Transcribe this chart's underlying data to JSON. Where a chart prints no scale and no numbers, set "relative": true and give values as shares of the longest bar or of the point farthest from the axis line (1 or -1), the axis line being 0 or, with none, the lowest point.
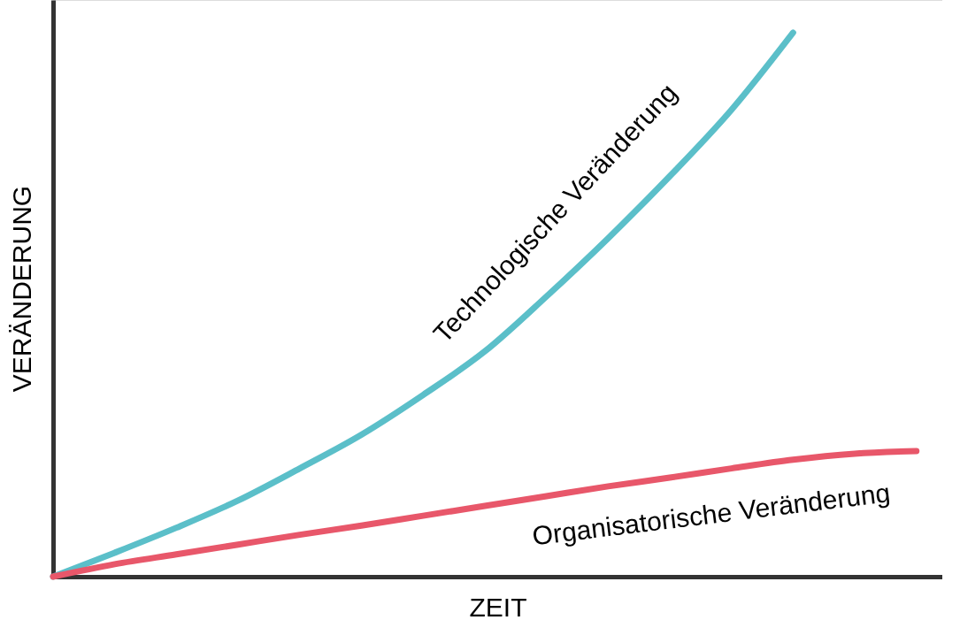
{
  "chart_data": {
    "type": "line",
    "relative": true,
    "xlabel": "ZEIT",
    "ylabel": "VERÄNDERUNG",
    "legend": false,
    "grid": false,
    "tick_labels": false,
    "marker": "none",
    "line_style": "solid",
    "categories": [
      null,
      null,
      null,
      null,
      null,
      null,
      null,
      null,
      null,
      null,
      null,
      null,
      null,
      null,
      null
    ],
    "series": [
      {
        "name": "Technologische Veränderung",
        "color": "#5bbfc9",
        "values": [
          0,
          0.044,
          0.09,
          0.14,
          0.199,
          0.261,
          0.334,
          0.414,
          0.515,
          0.622,
          0.736,
          0.858,
          1,
          null,
          null
        ]
      },
      {
        "name": "Organisatorische Veränderung",
        "color": "#e8576a",
        "values": [
          0,
          0.023,
          0.041,
          0.059,
          0.077,
          0.094,
          0.112,
          0.13,
          0.148,
          0.166,
          0.182,
          0.199,
          0.215,
          0.226,
          0.231
        ]
      }
    ]
  }
}
